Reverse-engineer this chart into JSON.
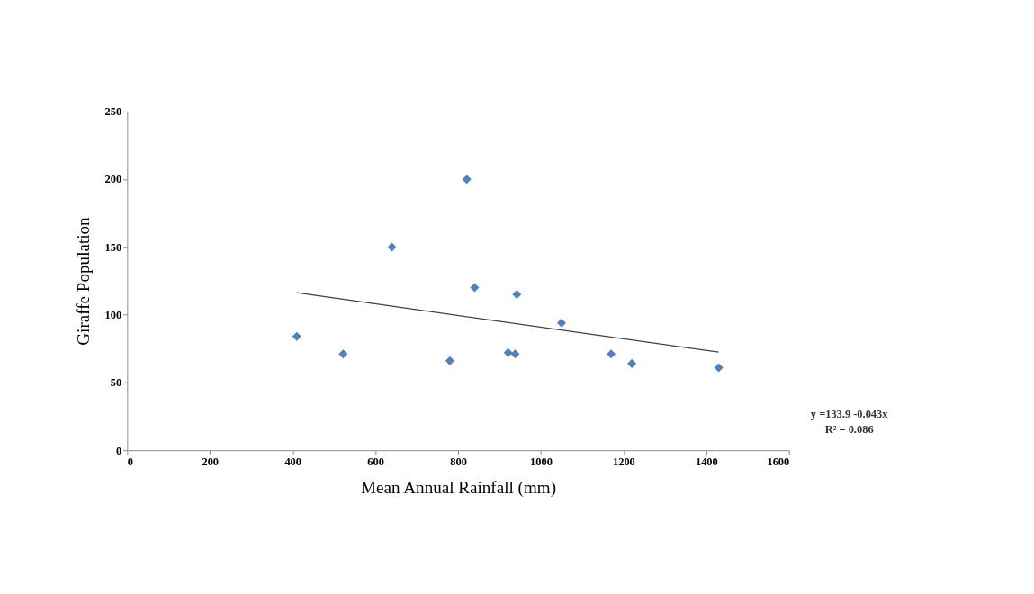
{
  "chart_data": {
    "type": "scatter",
    "xlabel": "Mean Annual Rainfall (mm)",
    "ylabel": "Giraffe Population",
    "series": [
      {
        "type": "scatter",
        "color": "#4f81bd",
        "marker": "diamond",
        "x": [
          410,
          522,
          640,
          780,
          821,
          840,
          921,
          938,
          942,
          1050,
          1170,
          1220,
          1430
        ],
        "values": [
          84,
          71,
          150,
          66,
          200,
          120,
          72,
          71,
          115,
          94,
          71,
          64,
          61
        ]
      },
      {
        "type": "line",
        "color": "#404040",
        "marker": "none",
        "x": [
          410,
          1430
        ],
        "values": [
          116.3,
          72.4
        ]
      }
    ],
    "annotations": [
      "y =133.9 -0.043x",
      "R² = 0.086"
    ],
    "xlim": [
      0,
      1600
    ],
    "xticks": [
      0,
      200,
      400,
      600,
      800,
      1000,
      1200,
      1400,
      1600
    ],
    "ylim": [
      0,
      250
    ],
    "yticks": [
      0,
      50,
      100,
      150,
      200,
      250
    ],
    "grid": false
  }
}
